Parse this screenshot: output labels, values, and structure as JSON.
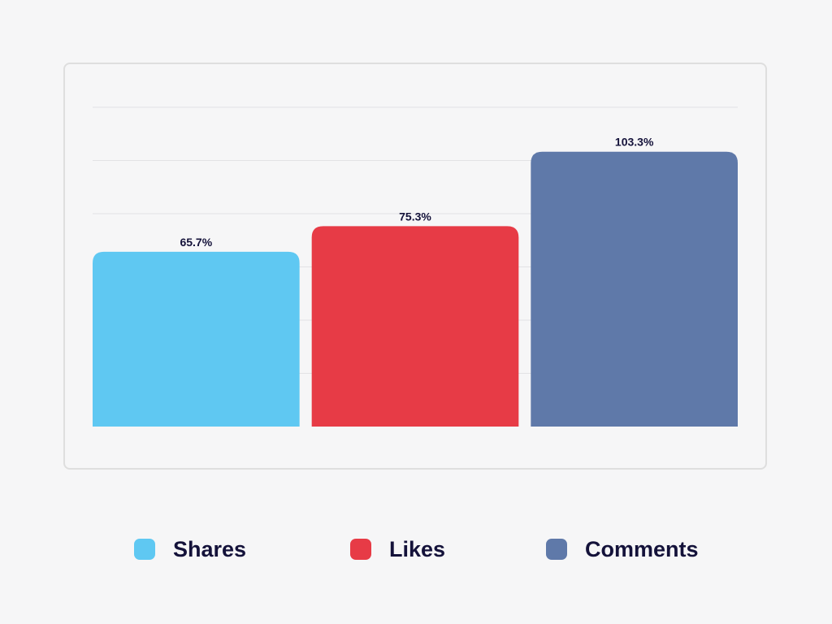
{
  "chart_data": {
    "type": "bar",
    "categories": [
      "Shares",
      "Likes",
      "Comments"
    ],
    "values": [
      65.7,
      75.3,
      103.3
    ],
    "labels": [
      "65.7%",
      "75.3%",
      "103.3%"
    ],
    "colors": [
      "#5fc8f2",
      "#e73b46",
      "#5f79a9"
    ],
    "title": "",
    "xlabel": "",
    "ylabel": "",
    "ylim": [
      0,
      120
    ],
    "grid": true,
    "legend_position": "bottom"
  },
  "legend": {
    "items": [
      {
        "label": "Shares",
        "color": "#5fc8f2"
      },
      {
        "label": "Likes",
        "color": "#e73b46"
      },
      {
        "label": "Comments",
        "color": "#5f79a9"
      }
    ]
  }
}
